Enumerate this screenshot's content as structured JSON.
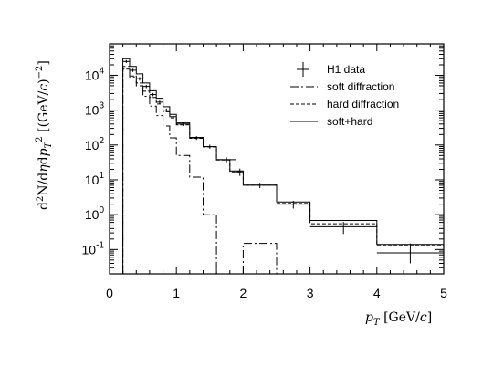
{
  "chart_data": {
    "type": "line",
    "title": "",
    "xlabel": "p_T [GeV/c]",
    "ylabel": "d²N/dηdp_T² [(GeV/c)⁻²]",
    "xlim": [
      0,
      5
    ],
    "ylim": [
      0.02,
      80000
    ],
    "yscale": "log",
    "x_ticks": [
      "0",
      "1",
      "2",
      "3",
      "4",
      "5"
    ],
    "y_ticks": [
      {
        "mant": "10",
        "exp": "4"
      },
      {
        "mant": "10",
        "exp": "3"
      },
      {
        "mant": "10",
        "exp": "2"
      },
      {
        "mant": "10",
        "exp": "1"
      },
      {
        "mant": "10",
        "exp": "0"
      },
      {
        "mant": "10",
        "exp": "-1"
      }
    ],
    "legend_position": "top-right",
    "series": [
      {
        "name": "H1 data",
        "style": "markers",
        "points": [
          {
            "x": 0.25,
            "y": 25000,
            "xerr": 0.05,
            "yerr_lo": 2500,
            "yerr_hi": 2500
          },
          {
            "x": 0.35,
            "y": 14000,
            "xerr": 0.05,
            "yerr_lo": 1500,
            "yerr_hi": 1500
          },
          {
            "x": 0.45,
            "y": 8000,
            "xerr": 0.05,
            "yerr_lo": 900,
            "yerr_hi": 900
          },
          {
            "x": 0.55,
            "y": 4800,
            "xerr": 0.05,
            "yerr_lo": 500,
            "yerr_hi": 500
          },
          {
            "x": 0.65,
            "y": 2800,
            "xerr": 0.05,
            "yerr_lo": 300,
            "yerr_hi": 300
          },
          {
            "x": 0.75,
            "y": 1700,
            "xerr": 0.05,
            "yerr_lo": 180,
            "yerr_hi": 180
          },
          {
            "x": 0.85,
            "y": 1000,
            "xerr": 0.05,
            "yerr_lo": 120,
            "yerr_hi": 120
          },
          {
            "x": 0.95,
            "y": 650,
            "xerr": 0.05,
            "yerr_lo": 80,
            "yerr_hi": 80
          },
          {
            "x": 1.1,
            "y": 400,
            "xerr": 0.1,
            "yerr_lo": 45,
            "yerr_hi": 45
          },
          {
            "x": 1.3,
            "y": 160,
            "xerr": 0.1,
            "yerr_lo": 20,
            "yerr_hi": 20
          },
          {
            "x": 1.5,
            "y": 90,
            "xerr": 0.1,
            "yerr_lo": 12,
            "yerr_hi": 12
          },
          {
            "x": 1.75,
            "y": 38,
            "xerr": 0.15,
            "yerr_lo": 6,
            "yerr_hi": 6
          },
          {
            "x": 1.95,
            "y": 17,
            "xerr": 0.05,
            "yerr_lo": 4,
            "yerr_hi": 4
          },
          {
            "x": 2.25,
            "y": 7,
            "xerr": 0.25,
            "yerr_lo": 1.2,
            "yerr_hi": 1.2
          },
          {
            "x": 2.75,
            "y": 2.0,
            "xerr": 0.25,
            "yerr_lo": 0.5,
            "yerr_hi": 0.5
          },
          {
            "x": 3.5,
            "y": 0.45,
            "xerr": 0.5,
            "yerr_lo": 0.17,
            "yerr_hi": 0.17
          },
          {
            "x": 4.5,
            "y": 0.08,
            "xerr": 0.5,
            "yerr_lo": 0.04,
            "yerr_hi": 0.07
          }
        ]
      },
      {
        "name": "soft diffraction",
        "style": "dashdot",
        "bins": [
          [
            0.2,
            0.3,
            18000
          ],
          [
            0.3,
            0.4,
            9000
          ],
          [
            0.4,
            0.5,
            5000
          ],
          [
            0.5,
            0.6,
            2500
          ],
          [
            0.6,
            0.7,
            1300
          ],
          [
            0.7,
            0.8,
            700
          ],
          [
            0.8,
            0.9,
            350
          ],
          [
            0.9,
            1.0,
            160
          ],
          [
            1.0,
            1.2,
            50
          ],
          [
            1.2,
            1.4,
            12
          ],
          [
            1.4,
            1.6,
            1.0
          ],
          [
            1.6,
            1.7,
            0.01
          ],
          [
            2.0,
            2.5,
            0.15
          ],
          [
            2.5,
            2.6,
            0.01
          ]
        ]
      },
      {
        "name": "hard diffraction",
        "style": "dashed",
        "bins": [
          [
            0.2,
            0.3,
            15000
          ],
          [
            0.3,
            0.4,
            9500
          ],
          [
            0.4,
            0.5,
            6000
          ],
          [
            0.5,
            0.6,
            3500
          ],
          [
            0.6,
            0.7,
            2300
          ],
          [
            0.7,
            0.8,
            1500
          ],
          [
            0.8,
            0.9,
            900
          ],
          [
            0.9,
            1.0,
            600
          ],
          [
            1.0,
            1.2,
            380
          ],
          [
            1.2,
            1.4,
            155
          ],
          [
            1.4,
            1.6,
            88
          ],
          [
            1.6,
            1.8,
            37
          ],
          [
            1.8,
            2.0,
            17
          ],
          [
            2.0,
            2.5,
            7
          ],
          [
            2.5,
            3.0,
            2.1
          ],
          [
            3.0,
            4.0,
            0.55
          ],
          [
            4.0,
            5.0,
            0.13
          ]
        ]
      },
      {
        "name": "soft+hard",
        "style": "solid",
        "bins": [
          [
            0.2,
            0.3,
            30000
          ],
          [
            0.3,
            0.4,
            18000
          ],
          [
            0.4,
            0.5,
            11000
          ],
          [
            0.5,
            0.6,
            6000
          ],
          [
            0.6,
            0.7,
            3600
          ],
          [
            0.7,
            0.8,
            2200
          ],
          [
            0.8,
            0.9,
            1250
          ],
          [
            0.9,
            1.0,
            760
          ],
          [
            1.0,
            1.2,
            430
          ],
          [
            1.2,
            1.4,
            165
          ],
          [
            1.4,
            1.6,
            90
          ],
          [
            1.6,
            1.8,
            38
          ],
          [
            1.8,
            2.0,
            18
          ],
          [
            2.0,
            2.5,
            7.5
          ],
          [
            2.5,
            3.0,
            2.3
          ],
          [
            3.0,
            4.0,
            0.68
          ],
          [
            4.0,
            5.0,
            0.14
          ]
        ]
      }
    ]
  }
}
